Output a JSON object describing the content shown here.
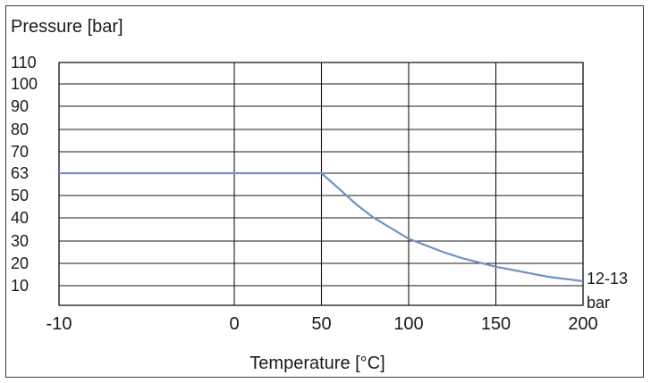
{
  "chart_data": {
    "type": "line",
    "title": "Pressure [bar]",
    "xlabel": "Temperature [°C]",
    "ylabel": "",
    "grid": true,
    "x_tick_labels": [
      "-10",
      "0",
      "50",
      "100",
      "150",
      "200"
    ],
    "y_tick_labels": [
      "10",
      "20",
      "30",
      "40",
      "50",
      "63",
      "70",
      "80",
      "90",
      "100",
      "110"
    ],
    "ylim": [
      0,
      110
    ],
    "end_annotation": [
      "12-13",
      "bar"
    ],
    "series": [
      {
        "x": [
          -10,
          0,
          10,
          20,
          30,
          40,
          50,
          60,
          70,
          80,
          90,
          100,
          110,
          120,
          130,
          140,
          150,
          160,
          170,
          180,
          190,
          200
        ],
        "y": [
          63,
          63,
          63,
          63,
          63,
          63,
          63,
          54,
          46,
          40,
          35.5,
          31,
          28,
          25,
          22.5,
          20.5,
          18.5,
          17,
          15.5,
          14,
          13,
          12
        ],
        "color": "#6f93c2"
      }
    ]
  }
}
